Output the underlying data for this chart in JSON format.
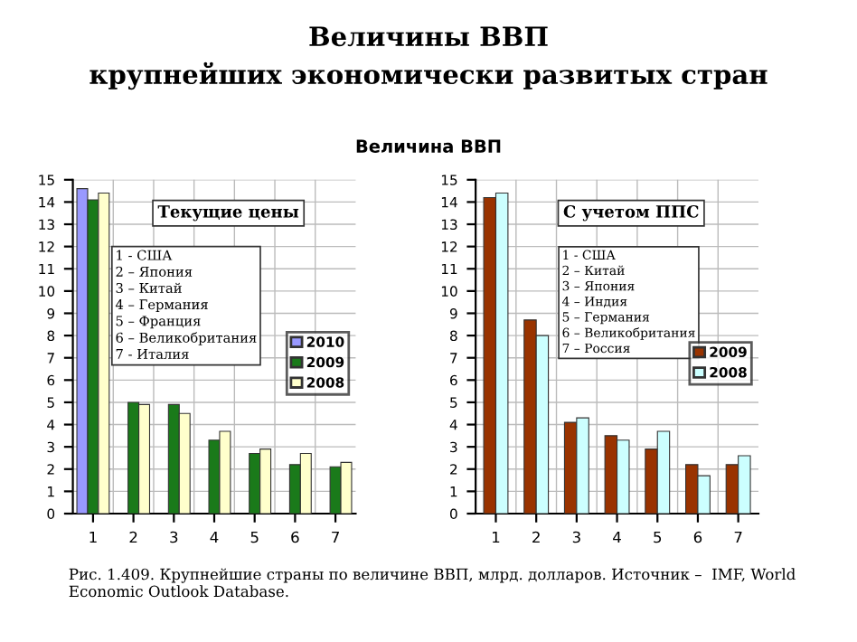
{
  "chart_data": [
    {
      "type": "bar",
      "title": "Величины ВВП\nкрупнейших экономически развитых стран",
      "subtitle": "Текущие цены",
      "categories": [
        "1",
        "2",
        "3",
        "4",
        "5",
        "6",
        "7"
      ],
      "series": [
        {
          "name": "2010",
          "color": "#9999ff",
          "values": [
            14.6,
            null,
            null,
            null,
            null,
            null,
            null
          ]
        },
        {
          "name": "2009",
          "color": "#1a7a1a",
          "values": [
            14.1,
            5.0,
            4.9,
            3.3,
            2.7,
            2.2,
            2.1
          ]
        },
        {
          "name": "2008",
          "color": "#ffffcc",
          "values": [
            14.4,
            4.9,
            4.5,
            3.7,
            2.9,
            2.7,
            2.3
          ]
        }
      ],
      "ylim": [
        0,
        15
      ],
      "yticks": [
        0,
        1,
        2,
        3,
        4,
        5,
        6,
        7,
        8,
        9,
        10,
        11,
        12,
        13,
        14,
        15
      ],
      "grid": true,
      "legend": "right",
      "annotations": [
        "Величина ВВП",
        "1 - США\n2 – Япония\n3 – Китай\n4 – Германия\n5 – Франция\n6 – Великобритания\n7 - Италия",
        "Рис. 1.409. Крупнейшие страны по величине ВВП, млрд. долларов. Источник –  IMF, World Economic Outlook Database."
      ]
    },
    {
      "type": "bar",
      "subtitle": "С учетом ППС",
      "categories": [
        "1",
        "2",
        "3",
        "4",
        "5",
        "6",
        "7"
      ],
      "series": [
        {
          "name": "2009",
          "color": "#993300",
          "values": [
            14.2,
            8.7,
            4.1,
            3.5,
            2.9,
            2.2,
            2.2
          ]
        },
        {
          "name": "2008",
          "color": "#ccffff",
          "values": [
            14.4,
            8.0,
            4.3,
            3.3,
            3.7,
            1.7,
            2.6
          ]
        }
      ],
      "ylim": [
        0,
        15
      ],
      "yticks": [
        0,
        1,
        2,
        3,
        4,
        5,
        6,
        7,
        8,
        9,
        10,
        11,
        12,
        13,
        14,
        15
      ],
      "grid": true,
      "legend": "right",
      "annotations": [
        "1 - США\n2 – Китай\n3 – Япония\n4 – Индия\n5 – Германия\n6 – Великобритания\n7 – Россия"
      ]
    }
  ]
}
